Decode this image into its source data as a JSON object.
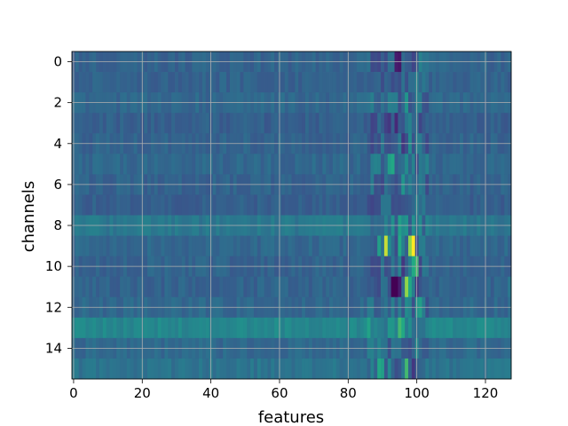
{
  "chart_data": {
    "type": "heatmap",
    "title": "",
    "xlabel": "features",
    "ylabel": "channels",
    "n_cols": 128,
    "n_rows": 16,
    "xlim": [
      -0.5,
      127.5
    ],
    "ylim": [
      15.5,
      -0.5
    ],
    "x_ticks": [
      0,
      20,
      40,
      60,
      80,
      100,
      120
    ],
    "y_ticks": [
      0,
      2,
      4,
      6,
      8,
      10,
      12,
      14
    ],
    "grid": true,
    "colormap": "viridis",
    "value_range": [
      0,
      1
    ],
    "rows": [
      {
        "channel": 0,
        "base": 0.4,
        "hot": [
          [
            94,
            0.1
          ],
          [
            95,
            0.08
          ],
          [
            99,
            0.25
          ],
          [
            101,
            0.55
          ],
          [
            88,
            0.3
          ]
        ]
      },
      {
        "channel": 1,
        "base": 0.4,
        "hot": [
          [
            95,
            0.3
          ],
          [
            100,
            0.55
          ],
          [
            98,
            0.45
          ]
        ]
      },
      {
        "channel": 2,
        "base": 0.42,
        "hot": [
          [
            97,
            0.65
          ],
          [
            100,
            0.55
          ],
          [
            95,
            0.3
          ]
        ]
      },
      {
        "channel": 3,
        "base": 0.38,
        "hot": [
          [
            92,
            0.2
          ],
          [
            94,
            0.15
          ],
          [
            98,
            0.55
          ]
        ]
      },
      {
        "channel": 4,
        "base": 0.4,
        "hot": [
          [
            96,
            0.2
          ],
          [
            98,
            0.6
          ],
          [
            92,
            0.3
          ]
        ]
      },
      {
        "channel": 5,
        "base": 0.42,
        "hot": [
          [
            92,
            0.7
          ],
          [
            93,
            0.75
          ],
          [
            97,
            0.6
          ],
          [
            99,
            0.55
          ]
        ]
      },
      {
        "channel": 6,
        "base": 0.4,
        "hot": [
          [
            96,
            0.65
          ],
          [
            94,
            0.3
          ],
          [
            99,
            0.45
          ]
        ]
      },
      {
        "channel": 7,
        "base": 0.38,
        "hot": [
          [
            95,
            0.3
          ],
          [
            100,
            0.55
          ]
        ]
      },
      {
        "channel": 8,
        "base": 0.5,
        "hot": [
          [
            95,
            0.7
          ],
          [
            96,
            0.6
          ],
          [
            98,
            0.35
          ]
        ]
      },
      {
        "channel": 9,
        "base": 0.42,
        "hot": [
          [
            89,
            0.7
          ],
          [
            91,
            0.95
          ],
          [
            92,
            0.6
          ],
          [
            95,
            0.75
          ],
          [
            98,
            0.9
          ],
          [
            99,
            1.0
          ],
          [
            94,
            0.3
          ]
        ]
      },
      {
        "channel": 10,
        "base": 0.4,
        "hot": [
          [
            95,
            0.55
          ],
          [
            96,
            0.2
          ],
          [
            99,
            0.75
          ],
          [
            100,
            0.8
          ],
          [
            102,
            0.5
          ]
        ]
      },
      {
        "channel": 11,
        "base": 0.4,
        "hot": [
          [
            93,
            0.0
          ],
          [
            94,
            0.0
          ],
          [
            95,
            0.1
          ],
          [
            97,
            0.9
          ],
          [
            98,
            0.75
          ],
          [
            100,
            0.2
          ],
          [
            127,
            0.5
          ]
        ]
      },
      {
        "channel": 12,
        "base": 0.42,
        "hot": [
          [
            97,
            0.6
          ],
          [
            100,
            0.65
          ],
          [
            101,
            0.7
          ]
        ]
      },
      {
        "channel": 13,
        "base": 0.58,
        "hot": [
          [
            96,
            0.75
          ],
          [
            95,
            0.8
          ],
          [
            99,
            0.45
          ]
        ]
      },
      {
        "channel": 14,
        "base": 0.43,
        "hot": [
          [
            92,
            0.3
          ],
          [
            100,
            0.6
          ],
          [
            102,
            0.35
          ]
        ]
      },
      {
        "channel": 15,
        "base": 0.48,
        "hot": [
          [
            89,
            0.75
          ],
          [
            90,
            0.7
          ],
          [
            94,
            0.3
          ],
          [
            97,
            0.8
          ],
          [
            99,
            0.2
          ]
        ]
      }
    ]
  }
}
